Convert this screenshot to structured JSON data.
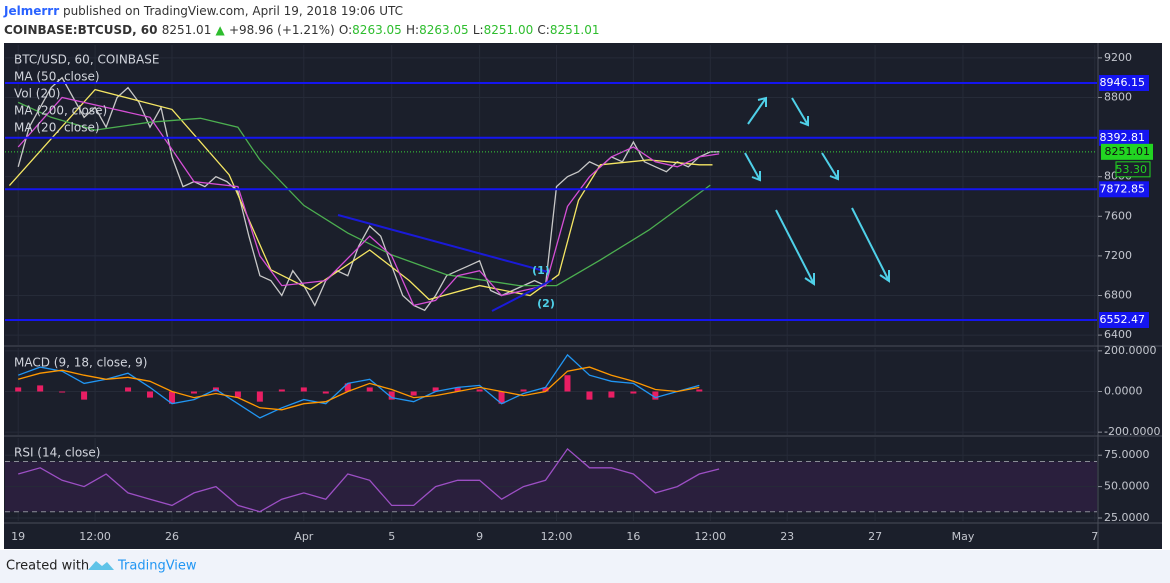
{
  "header": {
    "author": "Jelmerrr",
    "published": "published on TradingView.com, April 19, 2018 19:06 UTC",
    "symbol": "COINBASE:BTCUSD, 60",
    "last": "8251.01",
    "change": "+98.96 (+1.21%)",
    "ohlc": [
      {
        "label": "O:",
        "value": "8263.05"
      },
      {
        "label": "H:",
        "value": "8263.05"
      },
      {
        "label": "L:",
        "value": "8251.00"
      },
      {
        "label": "C:",
        "value": "8251.01"
      }
    ]
  },
  "footer": {
    "created_with": "Created with",
    "brand": "TradingView"
  },
  "chart_data": [
    {
      "type": "line",
      "title": "BTC/USD, 60, COINBASE",
      "labels": [
        "Vol (20)"
      ],
      "ylim": [
        6300,
        9330
      ],
      "yticks": [
        6400,
        6800,
        7200,
        7600,
        8000,
        8800,
        9200
      ],
      "grid": true,
      "levels": [
        8946.15,
        8392.81,
        7872.85,
        6552.47
      ],
      "level_color": "#1515f0",
      "last_price": 8251.01,
      "countdown": "53.30",
      "annotations": [
        "(1)",
        "(2)"
      ],
      "series": [
        {
          "color": "#c8c8c8",
          "x": [
            0,
            0.5,
            1,
            1.5,
            2,
            2.5,
            3,
            3.5,
            4,
            4.5,
            5,
            5.5,
            6,
            6.5,
            7,
            7.5,
            8,
            8.5,
            9,
            9.5,
            10,
            10.5,
            11,
            11.5,
            12,
            12.5,
            13,
            13.5,
            14,
            14.5,
            15,
            15.5,
            16,
            16.5,
            17,
            17.5,
            18,
            18.5,
            19,
            19.5,
            20,
            20.5,
            21,
            21.5,
            22,
            22.5,
            23,
            23.5,
            24,
            24.5,
            25,
            25.5,
            26,
            26.5,
            27,
            27.5,
            28,
            28.5,
            29,
            29.5,
            30,
            30.5,
            31,
            31.5,
            31.9
          ],
          "values": [
            8100,
            8500,
            8700,
            8900,
            9000,
            8800,
            8600,
            8700,
            8500,
            8800,
            8900,
            8750,
            8500,
            8700,
            8200,
            7900,
            7950,
            7900,
            8000,
            7950,
            7850,
            7400,
            7000,
            6950,
            6800,
            7050,
            6900,
            6700,
            6950,
            7050,
            7000,
            7300,
            7500,
            7400,
            7100,
            6800,
            6700,
            6650,
            6800,
            7000,
            7050,
            7100,
            7150,
            6850,
            6800,
            6850,
            6900,
            6950,
            6900,
            7900,
            8000,
            8050,
            8150,
            8100,
            8200,
            8150,
            8350,
            8150,
            8100,
            8050,
            8150,
            8100,
            8200,
            8250,
            8251.01
          ]
        },
        {
          "name": "MA (50, close)",
          "color": "#f5e663",
          "x": [
            -0.4,
            3.5,
            7,
            9.6,
            11.5,
            13.3,
            16,
            17.8,
            18.7,
            21,
            23.3,
            24.6,
            25.5,
            26.5,
            28.7,
            31,
            31.6
          ],
          "values": [
            7910,
            8880,
            8680,
            8020,
            7060,
            6860,
            7260,
            6950,
            6760,
            6900,
            6800,
            7010,
            7760,
            8120,
            8170,
            8120,
            8120
          ]
        },
        {
          "name": "MA (200, close)",
          "color": "#4caf50",
          "x": [
            0,
            1.5,
            3.5,
            6,
            8.3,
            10,
            11,
            13,
            15,
            17,
            19.5,
            22.8,
            24.5,
            26.5,
            28.7,
            31.5
          ],
          "values": [
            8750,
            8600,
            8470,
            8550,
            8590,
            8500,
            8170,
            7710,
            7430,
            7210,
            7010,
            6900,
            6900,
            7160,
            7460,
            7915
          ]
        },
        {
          "name": "MA (20, close)",
          "color": "#d64fd6",
          "x": [
            0,
            2,
            4,
            6,
            8,
            10,
            11,
            12,
            14,
            16,
            17,
            18,
            19,
            20,
            21,
            22,
            23,
            24,
            25,
            26,
            27,
            28,
            29,
            30,
            31,
            31.9
          ],
          "values": [
            8300,
            8800,
            8700,
            8600,
            7950,
            7900,
            7200,
            6900,
            6950,
            7400,
            7200,
            6700,
            6750,
            7000,
            7050,
            6800,
            6850,
            6900,
            7700,
            8000,
            8200,
            8300,
            8150,
            8100,
            8200,
            8230
          ]
        }
      ]
    },
    {
      "type": "line",
      "title": "MACD (9, 18, close, 9)",
      "ylim": [
        -214,
        214
      ],
      "yticks": [
        {
          "value": -200,
          "label": "-200.0000"
        },
        {
          "value": 0,
          "label": "0.0000"
        },
        {
          "value": 200,
          "label": "200.0000"
        }
      ],
      "grid": true,
      "series": [
        {
          "type": "bar",
          "color": "#e91e63",
          "x": [
            0,
            1,
            2,
            3,
            4,
            5,
            6,
            7,
            8,
            9,
            10,
            11,
            12,
            13,
            14,
            15,
            16,
            17,
            18,
            19,
            20,
            21,
            22,
            23,
            24,
            25,
            26,
            27,
            28,
            29,
            30,
            31
          ],
          "values": [
            20,
            30,
            -5,
            -40,
            0,
            20,
            -30,
            -60,
            -10,
            20,
            -30,
            -50,
            10,
            20,
            -10,
            40,
            20,
            -40,
            -20,
            20,
            20,
            10,
            -60,
            10,
            20,
            80,
            -40,
            -30,
            -10,
            -40,
            0,
            10
          ]
        },
        {
          "color": "#2196f3",
          "x": [
            0,
            1,
            2,
            3,
            4,
            5,
            6,
            7,
            8,
            9,
            10,
            11,
            12,
            13,
            14,
            15,
            16,
            17,
            18,
            19,
            20,
            21,
            22,
            23,
            24,
            25,
            26,
            27,
            28,
            29,
            30,
            31
          ],
          "values": [
            80,
            120,
            100,
            40,
            60,
            90,
            20,
            -60,
            -40,
            10,
            -60,
            -130,
            -80,
            -40,
            -60,
            40,
            60,
            -30,
            -50,
            0,
            20,
            30,
            -60,
            -10,
            20,
            180,
            80,
            50,
            40,
            -30,
            0,
            30
          ]
        },
        {
          "color": "#ff9800",
          "x": [
            0,
            1,
            2,
            3,
            4,
            5,
            6,
            7,
            8,
            9,
            10,
            11,
            12,
            13,
            14,
            15,
            16,
            17,
            18,
            19,
            20,
            21,
            22,
            23,
            24,
            25,
            26,
            27,
            28,
            29,
            30,
            31
          ],
          "values": [
            60,
            90,
            105,
            80,
            60,
            70,
            50,
            0,
            -30,
            -10,
            -30,
            -80,
            -90,
            -60,
            -50,
            0,
            40,
            10,
            -30,
            -20,
            0,
            20,
            0,
            -20,
            0,
            100,
            120,
            80,
            50,
            10,
            0,
            20
          ]
        }
      ]
    },
    {
      "type": "line",
      "title": "RSI (14, close)",
      "ylim": [
        22.6,
        88.7
      ],
      "yticks": [
        {
          "value": 25,
          "label": "25.0000"
        },
        {
          "value": 50,
          "label": "50.0000"
        },
        {
          "value": 75,
          "label": "75.0000"
        }
      ],
      "grid": true,
      "band": [
        30,
        70
      ],
      "xlim": [
        -0.6,
        49.1
      ],
      "xticks": [
        {
          "value": 0,
          "label": "19"
        },
        {
          "value": 3.5,
          "label": "12:00"
        },
        {
          "value": 7,
          "label": "26"
        },
        {
          "value": 13,
          "label": "Apr"
        },
        {
          "value": 17,
          "label": "5"
        },
        {
          "value": 21,
          "label": "9"
        },
        {
          "value": 24.5,
          "label": "12:00"
        },
        {
          "value": 28,
          "label": "16"
        },
        {
          "value": 31.5,
          "label": "12:00"
        },
        {
          "value": 35,
          "label": "23"
        },
        {
          "value": 39,
          "label": "27"
        },
        {
          "value": 43,
          "label": "May"
        },
        {
          "value": 49,
          "label": "7"
        }
      ],
      "series": [
        {
          "color": "#9c4fc4",
          "x": [
            0,
            1,
            2,
            3,
            4,
            5,
            6,
            7,
            8,
            9,
            10,
            11,
            12,
            13,
            14,
            15,
            16,
            17,
            18,
            19,
            20,
            21,
            22,
            23,
            24,
            25,
            26,
            27,
            28,
            29,
            30,
            31,
            31.9
          ],
          "values": [
            60,
            65,
            55,
            50,
            60,
            45,
            40,
            35,
            45,
            50,
            35,
            30,
            40,
            45,
            40,
            60,
            55,
            35,
            35,
            50,
            55,
            55,
            40,
            50,
            55,
            80,
            65,
            65,
            60,
            45,
            50,
            60,
            64
          ]
        }
      ]
    }
  ]
}
